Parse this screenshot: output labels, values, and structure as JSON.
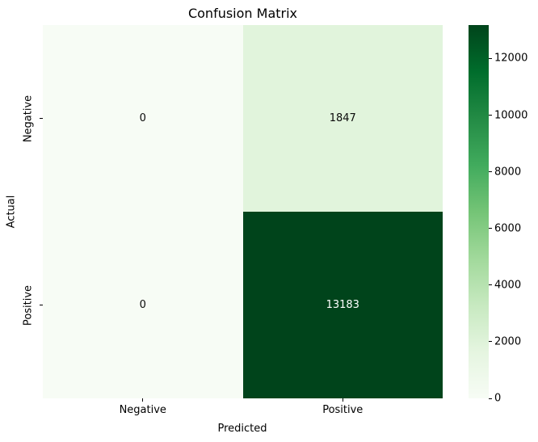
{
  "chart_data": {
    "type": "heatmap",
    "title": "Confusion Matrix",
    "xlabel": "Predicted",
    "ylabel": "Actual",
    "x_categories": [
      "Negative",
      "Positive"
    ],
    "y_categories": [
      "Negative",
      "Positive"
    ],
    "values": [
      [
        0,
        1847
      ],
      [
        0,
        13183
      ]
    ],
    "annotations": [
      [
        "0",
        "1847"
      ],
      [
        "0",
        "13183"
      ]
    ],
    "vmin": 0,
    "vmax": 13183,
    "colormap": "Greens",
    "colorbar_ticks": [
      0,
      2000,
      4000,
      6000,
      8000,
      10000,
      12000
    ],
    "colorbar_position": "right",
    "grid": false,
    "cell_colors": [
      [
        "#f7fcf5",
        "#e1f4dc"
      ],
      [
        "#f7fcf5",
        "#00441b"
      ]
    ],
    "cell_text_colors": [
      [
        "#0a0a0a",
        "#0a0a0a"
      ],
      [
        "#0a0a0a",
        "#ffffff"
      ]
    ],
    "colormap_stops": [
      "#f7fcf5",
      "#e5f5e0",
      "#c7e9c0",
      "#a1d99b",
      "#74c476",
      "#41ab5d",
      "#238b45",
      "#006d2c",
      "#00441b"
    ]
  },
  "colors": {
    "background": "#ffffff",
    "text": "#000000"
  }
}
